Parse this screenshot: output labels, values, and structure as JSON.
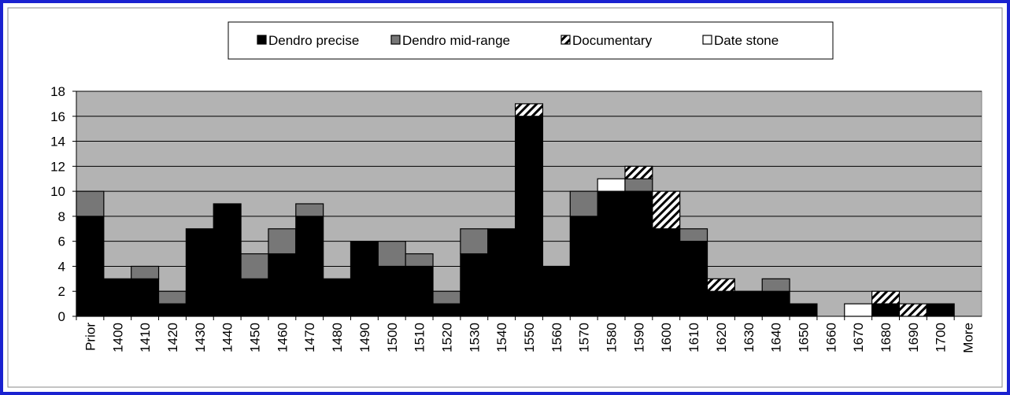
{
  "chart_data": {
    "type": "stacked-bar",
    "categories": [
      "Prior",
      "1400",
      "1410",
      "1420",
      "1430",
      "1440",
      "1450",
      "1460",
      "1470",
      "1480",
      "1490",
      "1500",
      "1510",
      "1520",
      "1530",
      "1540",
      "1550",
      "1560",
      "1570",
      "1580",
      "1590",
      "1600",
      "1610",
      "1620",
      "1630",
      "1640",
      "1650",
      "1660",
      "1670",
      "1680",
      "1690",
      "1700",
      "More"
    ],
    "series": [
      {
        "name": "Dendro precise",
        "color": "#000000",
        "values": [
          8,
          3,
          3,
          1,
          7,
          9,
          3,
          5,
          8,
          3,
          6,
          4,
          4,
          1,
          5,
          7,
          16,
          4,
          8,
          10,
          10,
          7,
          6,
          2,
          2,
          2,
          1,
          0,
          0,
          1,
          0,
          1,
          0
        ]
      },
      {
        "name": "Dendro mid-range",
        "color": "#777777",
        "values": [
          2,
          0,
          1,
          1,
          0,
          0,
          2,
          2,
          1,
          0,
          0,
          2,
          1,
          1,
          2,
          0,
          0,
          0,
          2,
          0,
          1,
          0,
          1,
          0,
          0,
          1,
          0,
          0,
          0,
          0,
          0,
          0,
          0
        ]
      },
      {
        "name": "Documentary",
        "color": "#000000",
        "pattern": "diagonal-hatch",
        "values": [
          0,
          0,
          0,
          0,
          0,
          0,
          0,
          0,
          0,
          0,
          0,
          0,
          0,
          0,
          0,
          0,
          1,
          0,
          0,
          0,
          1,
          3,
          0,
          1,
          0,
          0,
          0,
          0,
          0,
          1,
          1,
          0,
          0
        ]
      },
      {
        "name": "Date stone",
        "color": "#ffffff",
        "values": [
          0,
          0,
          0,
          0,
          0,
          0,
          0,
          0,
          0,
          0,
          0,
          0,
          0,
          0,
          0,
          0,
          0,
          0,
          0,
          1,
          0,
          0,
          0,
          0,
          0,
          0,
          0,
          0,
          1,
          0,
          0,
          0,
          0
        ]
      }
    ],
    "ylim": [
      0,
      18
    ],
    "yticks": [
      0,
      2,
      4,
      6,
      8,
      10,
      12,
      14,
      16,
      18
    ],
    "grid": true,
    "legend": "top"
  }
}
